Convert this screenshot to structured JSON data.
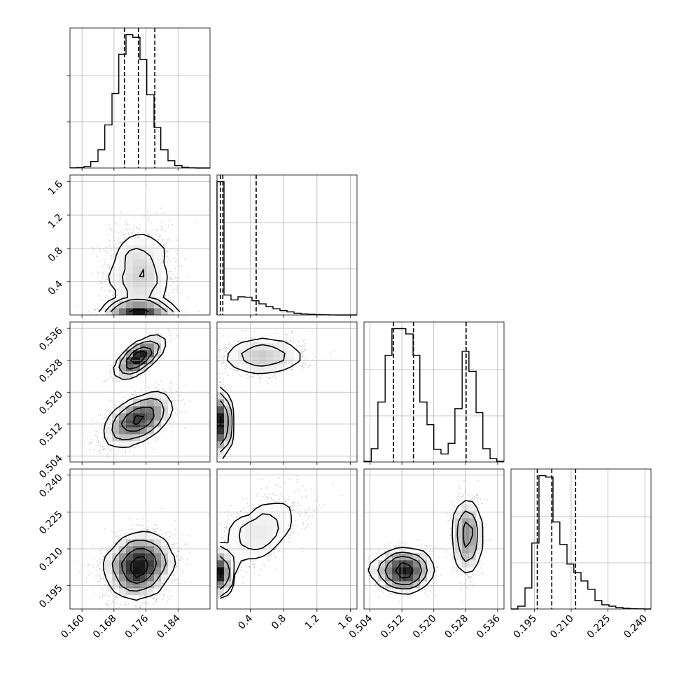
{
  "chart_data": {
    "type": "corner",
    "grid": true,
    "parameters": [
      {
        "range": [
          0.157,
          0.192
        ],
        "ticks": [
          0.16,
          0.168,
          0.176,
          0.184
        ],
        "tick_labels": [
          "0.160",
          "0.168",
          "0.176",
          "0.184"
        ],
        "quantiles": [
          0.1706,
          0.1741,
          0.1782
        ]
      },
      {
        "range": [
          0.0,
          1.68
        ],
        "ticks": [
          0.4,
          0.8,
          1.2,
          1.6
        ],
        "tick_labels": [
          "0.4",
          "0.8",
          "1.2",
          "1.6"
        ],
        "quantiles": [
          0.04,
          0.07,
          0.47
        ]
      },
      {
        "range": [
          0.5025,
          0.5376
        ],
        "ticks": [
          0.504,
          0.512,
          0.52,
          0.528,
          0.536
        ],
        "tick_labels": [
          "0.504",
          "0.512",
          "0.520",
          "0.528",
          "0.536"
        ],
        "quantiles": [
          0.5099,
          0.5149,
          0.5281
        ]
      },
      {
        "range": [
          0.1855,
          0.2425
        ],
        "ticks": [
          0.195,
          0.21,
          0.225,
          0.24
        ],
        "tick_labels": [
          "0.195",
          "0.210",
          "0.225",
          "0.240"
        ],
        "quantiles": [
          0.1962,
          0.2021,
          0.2118
        ]
      }
    ],
    "histograms": [
      {
        "edges": [
          0.157,
          0.1587,
          0.1605,
          0.1622,
          0.164,
          0.1657,
          0.1675,
          0.1692,
          0.171,
          0.1727,
          0.1745,
          0.1762,
          0.178,
          0.1797,
          0.1815,
          0.1832,
          0.185,
          0.1867,
          0.1885,
          0.1902,
          0.192
        ],
        "counts": [
          1,
          3,
          12,
          50,
          140,
          330,
          570,
          870,
          1020,
          1000,
          830,
          560,
          310,
          140,
          55,
          18,
          5,
          1,
          0,
          0
        ]
      },
      {
        "edges": [
          0.0,
          0.084,
          0.168,
          0.252,
          0.336,
          0.42,
          0.504,
          0.588,
          0.672,
          0.756,
          0.84,
          0.924,
          1.008,
          1.092,
          1.176,
          1.26,
          1.344,
          1.428,
          1.512,
          1.596,
          1.68
        ],
        "counts": [
          1500,
          225,
          170,
          205,
          200,
          160,
          125,
          95,
          70,
          50,
          35,
          20,
          12,
          8,
          4,
          2,
          1,
          0,
          0,
          0
        ]
      },
      {
        "edges": [
          0.5025,
          0.5043,
          0.506,
          0.5078,
          0.5095,
          0.5113,
          0.513,
          0.5148,
          0.5165,
          0.5183,
          0.52,
          0.5218,
          0.5236,
          0.5253,
          0.5271,
          0.5288,
          0.5306,
          0.5323,
          0.5341,
          0.5358,
          0.5376
        ],
        "counts": [
          5,
          100,
          450,
          800,
          1000,
          1000,
          960,
          800,
          450,
          280,
          95,
          60,
          140,
          400,
          830,
          680,
          370,
          100,
          25,
          5
        ]
      },
      {
        "edges": [
          0.1855,
          0.1883,
          0.1912,
          0.194,
          0.1969,
          0.1997,
          0.2026,
          0.2054,
          0.2083,
          0.2111,
          0.214,
          0.2168,
          0.2197,
          0.2225,
          0.2254,
          0.2282,
          0.2311,
          0.2339,
          0.2368,
          0.2396,
          0.2425
        ],
        "counts": [
          0,
          20,
          150,
          470,
          950,
          940,
          620,
          460,
          320,
          260,
          200,
          140,
          60,
          30,
          20,
          10,
          5,
          2,
          1,
          0
        ]
      }
    ],
    "contour_levels": [
      "0.5σ",
      "1σ",
      "1.5σ",
      "2σ"
    ]
  }
}
